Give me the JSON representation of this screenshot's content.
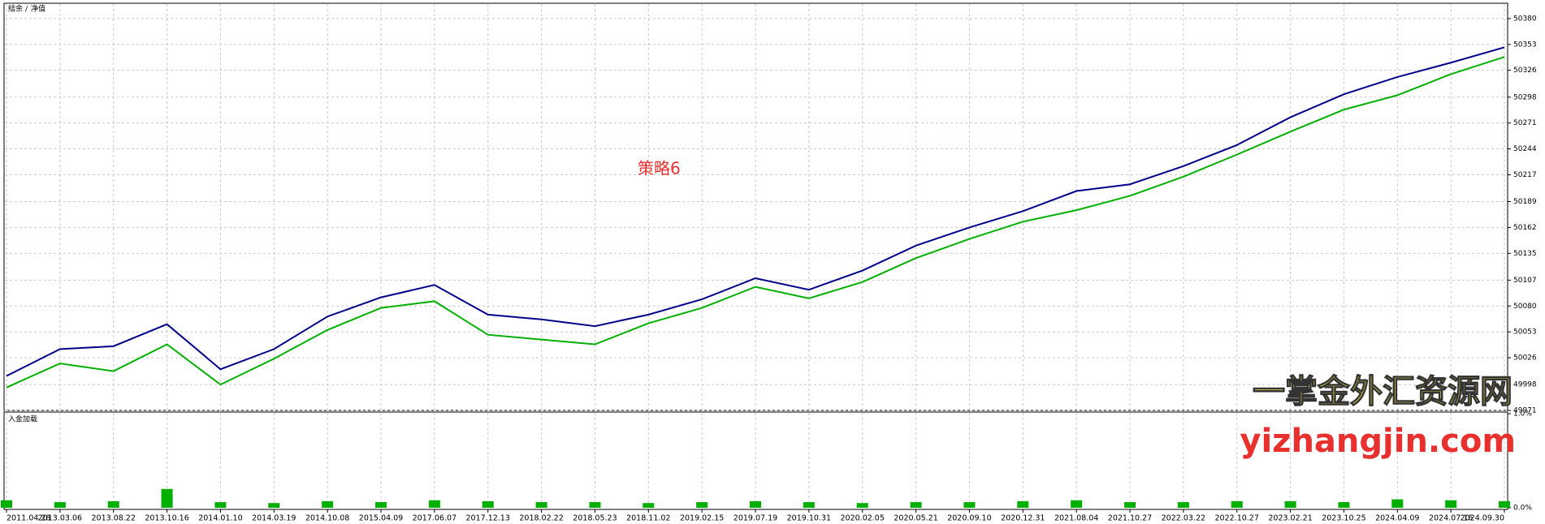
{
  "chart_data": [
    {
      "type": "line",
      "legend_separator": "/",
      "categories": [
        "2011.04.28",
        "2013.03.06",
        "2013.08.22",
        "2013.10.16",
        "2014.01.10",
        "2014.03.19",
        "2014.10.08",
        "2015.04.09",
        "2017.06.07",
        "2017.12.13",
        "2018.02.22",
        "2018.05.23",
        "2018.11.02",
        "2019.02.15",
        "2019.07.19",
        "2019.10.31",
        "2020.02.05",
        "2020.05.21",
        "2020.09.10",
        "2020.12.31",
        "2021.08.04",
        "2021.10.27",
        "2022.03.22",
        "2022.10.27",
        "2023.02.21",
        "2023.10.25",
        "2024.04.09",
        "2024.07.16",
        "2024.09.30"
      ],
      "series": [
        {
          "name": "结余",
          "color": "#00008b",
          "values": [
            50007,
            50035,
            50038,
            50061,
            50014,
            50035,
            50069,
            50089,
            50102,
            50071,
            50066,
            50059,
            50071,
            50087,
            50109,
            50097,
            50117,
            50143,
            50162,
            50179,
            50200,
            50207,
            50226,
            50248,
            50277,
            50301,
            50319,
            50334,
            50350
          ]
        },
        {
          "name": "净值",
          "color": "#00b000",
          "values": [
            49995,
            50020,
            50012,
            50040,
            49998,
            50025,
            50055,
            50078,
            50085,
            50050,
            50045,
            50040,
            50062,
            50078,
            50100,
            50088,
            50105,
            50130,
            50150,
            50168,
            50180,
            50195,
            50215,
            50238,
            50262,
            50285,
            50300,
            50322,
            50340
          ]
        }
      ],
      "ylim": [
        49971,
        50396
      ],
      "yticks": [
        49971,
        49998,
        50026,
        50053,
        50080,
        50107,
        50135,
        50162,
        50189,
        50217,
        50244,
        50271,
        50298,
        50326,
        50353,
        50380
      ],
      "grid": true,
      "annotations": [
        "策略6",
        "一掌金外汇资源网",
        "yizhangjin.com"
      ]
    },
    {
      "type": "bar",
      "title": "入金加载",
      "color": "#00b000",
      "values": [
        0.08,
        0.06,
        0.07,
        0.2,
        0.06,
        0.05,
        0.07,
        0.06,
        0.08,
        0.07,
        0.06,
        0.06,
        0.05,
        0.06,
        0.07,
        0.06,
        0.05,
        0.06,
        0.06,
        0.07,
        0.08,
        0.06,
        0.06,
        0.07,
        0.07,
        0.06,
        0.09,
        0.08,
        0.07
      ],
      "ylim": [
        0,
        1
      ],
      "yticks": [
        {
          "value": 0,
          "label": "0.0%"
        },
        {
          "value": 1,
          "label": "1.0%"
        }
      ]
    }
  ]
}
